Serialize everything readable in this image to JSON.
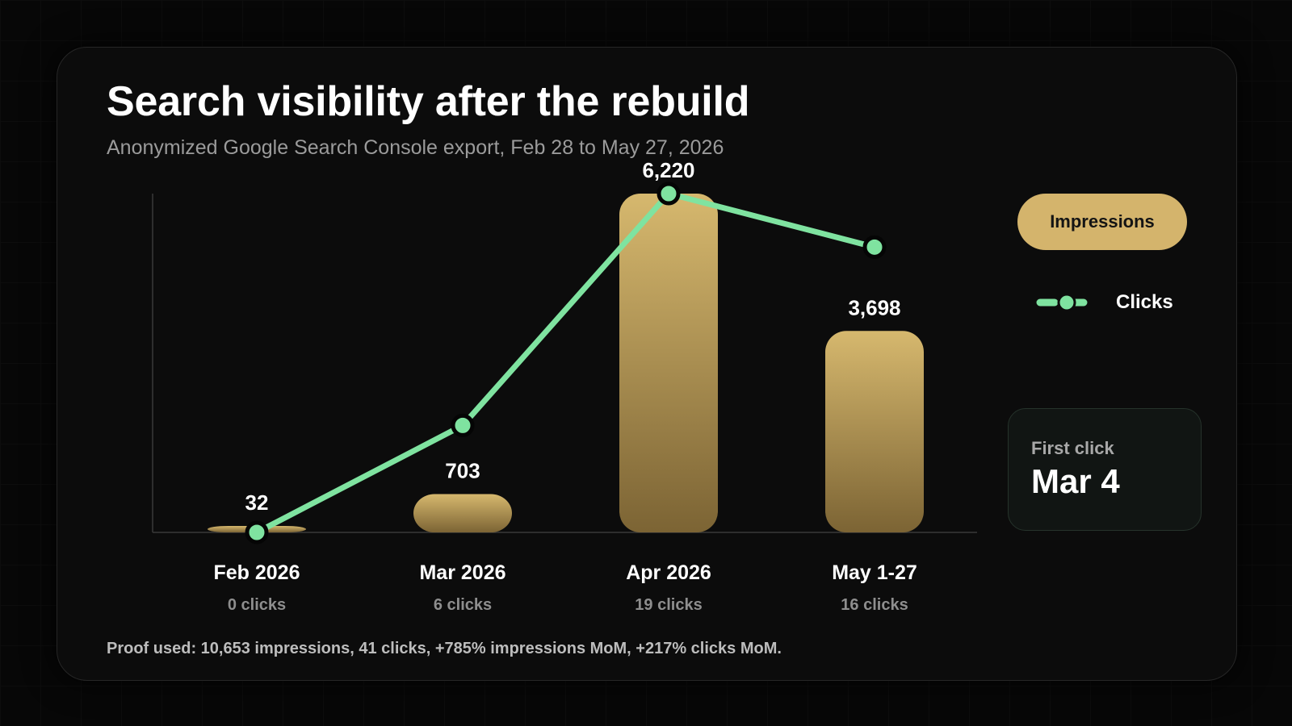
{
  "title": "Search visibility after the rebuild",
  "subtitle": "Anonymized Google Search Console export, Feb 28 to May 27, 2026",
  "legend": {
    "impressions_label": "Impressions",
    "clicks_label": "Clicks"
  },
  "first_click": {
    "label": "First click",
    "value": "Mar 4"
  },
  "footer": "Proof used: 10,653 impressions, 41 clicks, +785% impressions MoM, +217% clicks MoM.",
  "colors": {
    "impressions_top": "#d6b86e",
    "impressions_bottom": "#7c6434",
    "clicks": "#7fe3a0",
    "background": "#0c0c0c"
  },
  "chart_data": {
    "type": "bar",
    "categories": [
      "Feb 2026",
      "Mar 2026",
      "Apr 2026",
      "May 1-27"
    ],
    "sublabels": [
      "0 clicks",
      "6 clicks",
      "19 clicks",
      "16 clicks"
    ],
    "series": [
      {
        "name": "Impressions",
        "type": "bar",
        "values": [
          32,
          703,
          6220,
          3698
        ],
        "labels": [
          "32",
          "703",
          "6,220",
          "3,698"
        ]
      },
      {
        "name": "Clicks",
        "type": "line",
        "values": [
          0,
          6,
          19,
          16
        ]
      }
    ],
    "ylim": [
      0,
      6220
    ],
    "grid": false,
    "legend_position": "right"
  }
}
